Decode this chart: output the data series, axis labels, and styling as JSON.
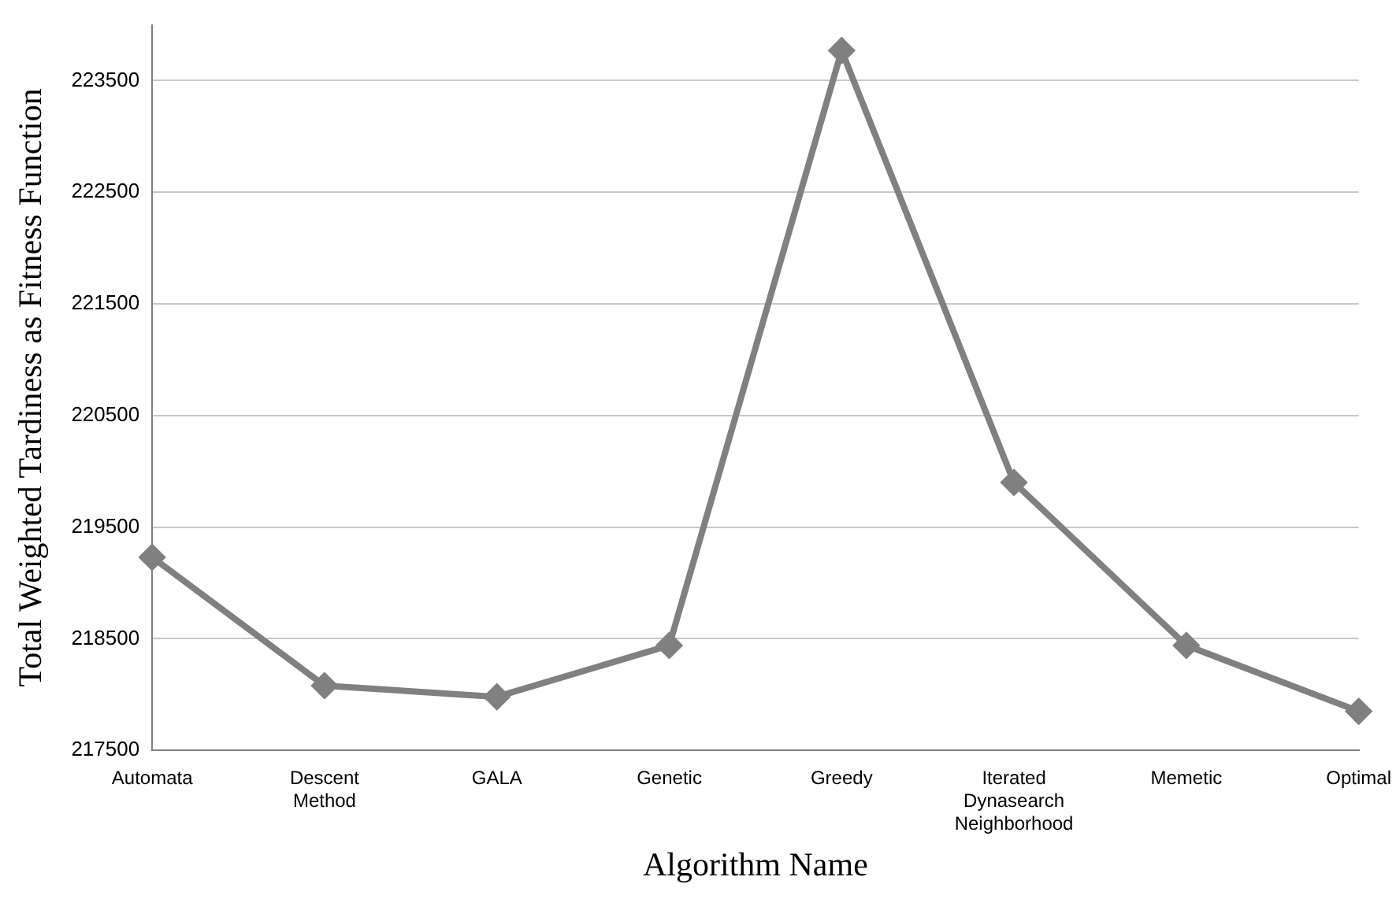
{
  "chart_data": {
    "type": "line",
    "xlabel": "Algorithm Name",
    "ylabel": "Total Weighted Tardiness as Fitness Function",
    "categories": [
      "Automata",
      "Descent Method",
      "GALA",
      "Genetic",
      "Greedy",
      "Iterated Dynasearch Neighborhood",
      "Memetic",
      "Optimal"
    ],
    "series": [
      {
        "color": "#808080",
        "values": [
          219230,
          218080,
          217980,
          218440,
          223770,
          219900,
          218440,
          217850
        ]
      }
    ],
    "ylim": [
      217500,
      224000
    ],
    "yticks": [
      217500,
      218500,
      219500,
      220500,
      221500,
      222500,
      223500
    ],
    "grid": "y",
    "legend": false,
    "marker": "diamond",
    "line_style": "solid"
  }
}
